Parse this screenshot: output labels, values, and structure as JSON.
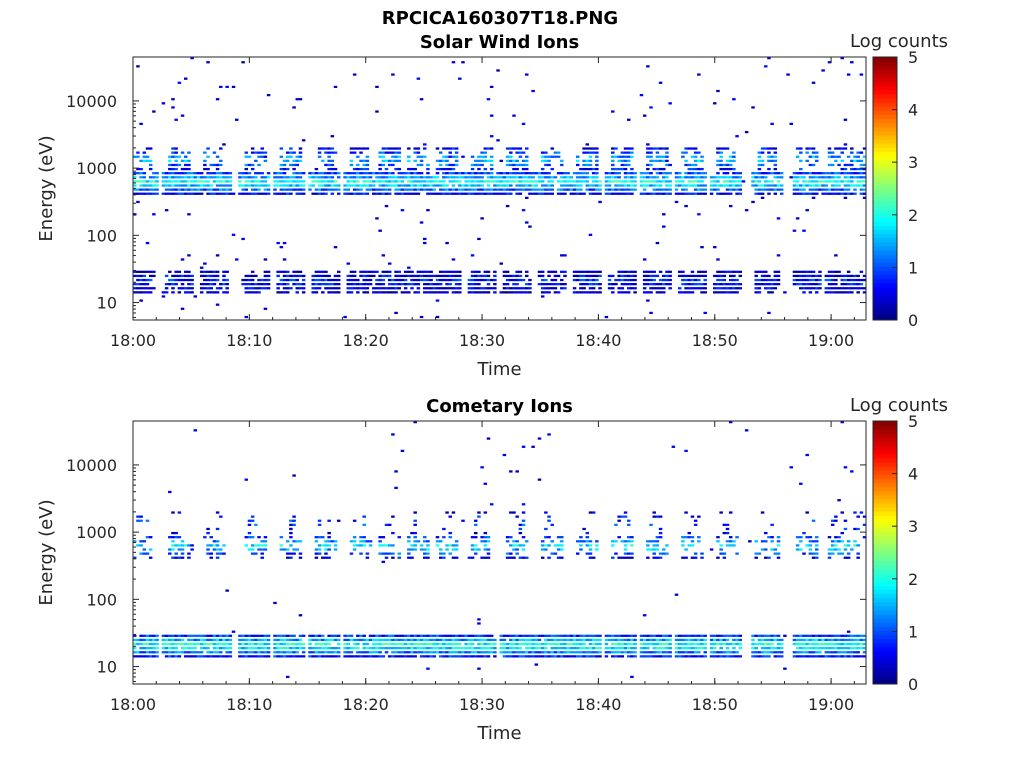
{
  "figure": {
    "title": "RPCICA160307T18.PNG"
  },
  "chart_data": [
    {
      "type": "heatmap",
      "title": "Solar Wind Ions",
      "xlabel": "Time",
      "ylabel": "Energy (eV)",
      "xlim": [
        "18:00",
        "19:03"
      ],
      "ylim": [
        5.5,
        45000
      ],
      "y_scale": "log",
      "xticks": [
        "18:00",
        "18:10",
        "18:20",
        "18:30",
        "18:40",
        "18:50",
        "19:00"
      ],
      "yticks": [
        "10",
        "100",
        "1000",
        "10000"
      ],
      "colorbar": {
        "label": "Log counts",
        "range": [
          0,
          5
        ],
        "ticks": [
          "0",
          "1",
          "2",
          "3",
          "4",
          "5"
        ],
        "colormap": "jet"
      },
      "bands": [
        {
          "energy": 20,
          "intensity": 0.8,
          "cluster_width_min": 1.2,
          "density": 0.85
        },
        {
          "energy": 600,
          "intensity": 2.0,
          "cluster_width_min": 1.4,
          "density": 0.9
        },
        {
          "energy": 1300,
          "intensity": 1.6,
          "cluster_width_min": 0.9,
          "density": 0.6
        }
      ],
      "cluster_times_min": [
        0.7,
        4,
        7,
        10.5,
        13.5,
        16.5,
        19.5,
        22,
        24.5,
        27,
        30,
        33,
        36,
        39,
        42,
        45,
        48,
        51,
        54.5,
        58,
        60.7,
        62.3
      ],
      "scatter_fraction": 0.25
    },
    {
      "type": "heatmap",
      "title": "Cometary Ions",
      "xlabel": "Time",
      "ylabel": "Energy (eV)",
      "xlim": [
        "18:00",
        "19:03"
      ],
      "ylim": [
        5.5,
        45000
      ],
      "y_scale": "log",
      "xticks": [
        "18:00",
        "18:10",
        "18:20",
        "18:30",
        "18:40",
        "18:50",
        "19:00"
      ],
      "yticks": [
        "10",
        "100",
        "1000",
        "10000"
      ],
      "colorbar": {
        "label": "Log counts",
        "range": [
          0,
          5
        ],
        "ticks": [
          "0",
          "1",
          "2",
          "3",
          "4",
          "5"
        ],
        "colormap": "jet"
      },
      "bands": [
        {
          "energy": 20,
          "intensity": 2.1,
          "cluster_width_min": 1.4,
          "density": 0.95
        },
        {
          "energy": 600,
          "intensity": 1.8,
          "cluster_width_min": 1.0,
          "density": 0.5
        },
        {
          "energy": 1300,
          "intensity": 1.0,
          "cluster_width_min": 0.6,
          "density": 0.2
        }
      ],
      "cluster_times_min": [
        0.7,
        4,
        7,
        10.5,
        13.5,
        16.5,
        19.5,
        22,
        24.5,
        27,
        29.8,
        33,
        36,
        39,
        42,
        45,
        48,
        51,
        54.5,
        58,
        60.7,
        62.3
      ],
      "scatter_fraction": 0.08
    }
  ]
}
